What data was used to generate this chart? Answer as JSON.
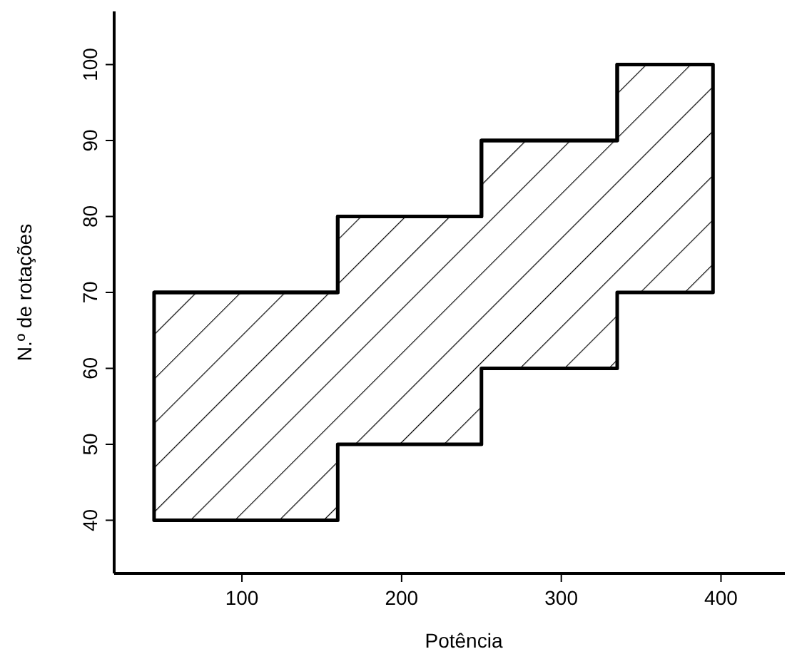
{
  "chart_data": {
    "type": "step",
    "xlabel": "Potência",
    "ylabel": "N.º de rotações",
    "xlim": [
      20,
      440
    ],
    "ylim": [
      33,
      107
    ],
    "xticks": [
      100,
      200,
      300,
      400
    ],
    "yticks": [
      40,
      50,
      60,
      70,
      80,
      90,
      100
    ],
    "grid": false,
    "series": [
      {
        "color": "#000000",
        "x": [
          45,
          160,
          250,
          335,
          395
        ],
        "values": [
          70,
          80,
          90,
          100,
          100
        ],
        "lower": [
          40,
          50,
          60,
          70,
          70
        ],
        "upper": [
          70,
          80,
          90,
          100,
          100
        ]
      }
    ]
  }
}
